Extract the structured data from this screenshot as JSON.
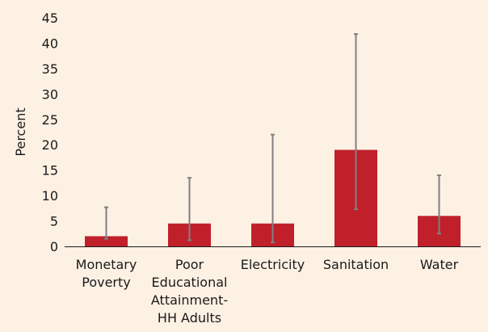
{
  "chart_data": {
    "type": "bar",
    "title": "",
    "xlabel": "",
    "ylabel": "Percent",
    "ylim": [
      0,
      45
    ],
    "yticks": [
      0,
      5,
      10,
      15,
      20,
      25,
      30,
      35,
      40,
      45
    ],
    "grid": false,
    "legend": "none",
    "categories": [
      [
        "Monetary",
        "Poverty"
      ],
      [
        "Poor",
        "Educational",
        "Attainment-",
        "HH Adults"
      ],
      [
        "Electricity"
      ],
      [
        "Sanitation"
      ],
      [
        "Water"
      ]
    ],
    "values": [
      2,
      4.5,
      4.5,
      19,
      6
    ],
    "error_low": [
      1.5,
      1.2,
      0.8,
      7.3,
      2.5
    ],
    "error_high": [
      7.7,
      13.5,
      22,
      41.8,
      14
    ],
    "colors": {
      "bar": "#c0202a",
      "error_bar": "#808080",
      "axis": "#1a1a1a",
      "background": "#fdf1e4"
    }
  }
}
